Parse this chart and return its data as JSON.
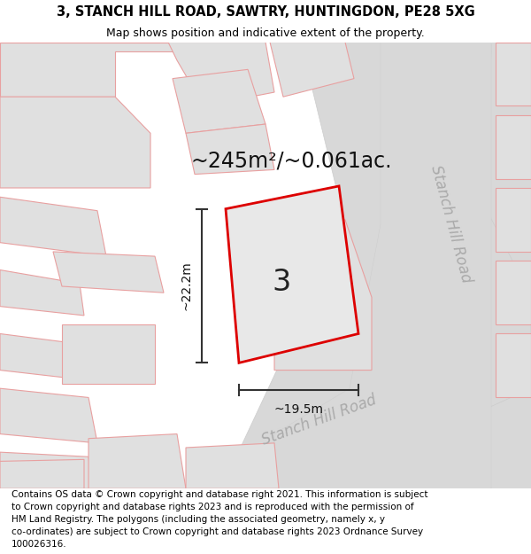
{
  "title_line1": "3, STANCH HILL ROAD, SAWTRY, HUNTINGDON, PE28 5XG",
  "title_line2": "Map shows position and indicative extent of the property.",
  "footer_lines": [
    "Contains OS data © Crown copyright and database right 2021. This information is subject",
    "to Crown copyright and database rights 2023 and is reproduced with the permission of",
    "HM Land Registry. The polygons (including the associated geometry, namely x, y",
    "co-ordinates) are subject to Crown copyright and database rights 2023 Ordnance Survey",
    "100026316."
  ],
  "area_text": "~245m²/~0.061ac.",
  "label_width": "~19.5m",
  "label_height": "~22.2m",
  "plot_number": "3",
  "road_label_right": "Stanch Hill Road",
  "road_label_diag": "Stanch Hill Road",
  "map_bg": "#ffffff",
  "plot_fill": "#e8e8e8",
  "plot_edge_color": "#dd0000",
  "neighbor_fill": "#e0e0e0",
  "neighbor_edge": "#e8a0a0",
  "road_color": "#d8d8d8",
  "road_edge": "#cccccc",
  "road_label_color": "#aaaaaa",
  "title_fontsize": 10.5,
  "subtitle_fontsize": 9,
  "footer_fontsize": 7.5,
  "area_fontsize": 17,
  "dim_fontsize": 10,
  "plot_label_fontsize": 24,
  "road_label_fontsize": 12
}
